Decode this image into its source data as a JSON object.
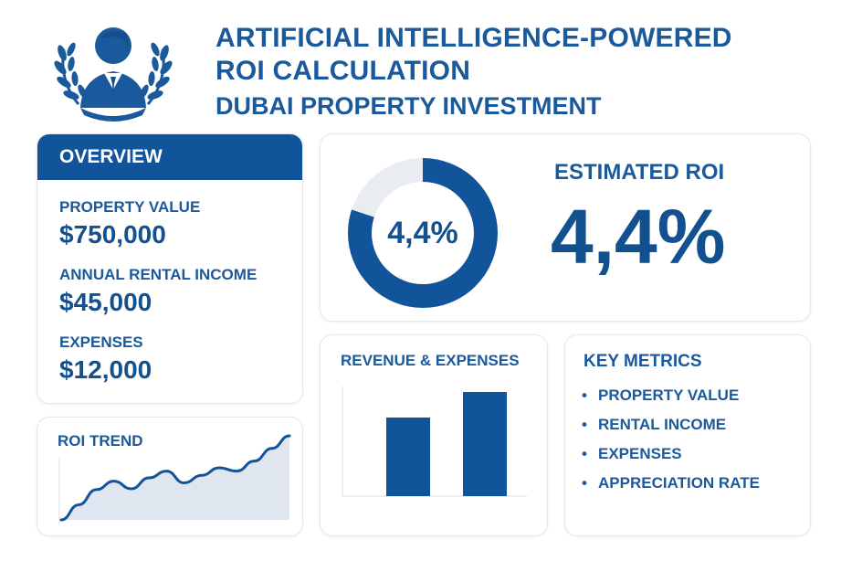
{
  "header": {
    "title_line1": "ARTIFICIAL INTELLIGENCE-POWERED",
    "title_line2": "ROI CALCULATION",
    "subtitle": "DUBAI PROPERTY INVESTMENT",
    "logo_icon": "businessman-laurel-icon"
  },
  "overview": {
    "title": "OVERVIEW",
    "items": [
      {
        "label": "PROPERTY VALUE",
        "value": "$750,000"
      },
      {
        "label": "ANNUAL RENTAL INCOME",
        "value": "$45,000"
      },
      {
        "label": "EXPENSES",
        "value": "$12,000"
      }
    ]
  },
  "roi": {
    "heading": "ESTIMATED ROI",
    "value_text": "4,4%",
    "donut_label": "4,4%",
    "donut_fill_fraction": 0.8
  },
  "roi_trend": {
    "title": "ROI TREND",
    "chart_data": {
      "type": "area",
      "y": [
        0.0,
        0.18,
        0.36,
        0.46,
        0.37,
        0.5,
        0.58,
        0.44,
        0.53,
        0.62,
        0.58,
        0.7,
        0.85,
        1.0
      ],
      "grid": false
    }
  },
  "revenue_expenses": {
    "title": "REVENUE & EXPENSES",
    "chart_data": {
      "type": "bar",
      "values": [
        86,
        114
      ],
      "ylim": [
        0,
        120
      ],
      "grid": false
    }
  },
  "key_metrics": {
    "title": "KEY METRICS",
    "items": [
      "PROPERTY VALUE",
      "RENTAL INCOME",
      "EXPENSES",
      "APPRECIATION RATE"
    ]
  },
  "colors": {
    "primary": "#12549a",
    "text": "#1a5a9c",
    "track": "#e9ecf0",
    "area_fill": "#dfe6ef"
  }
}
